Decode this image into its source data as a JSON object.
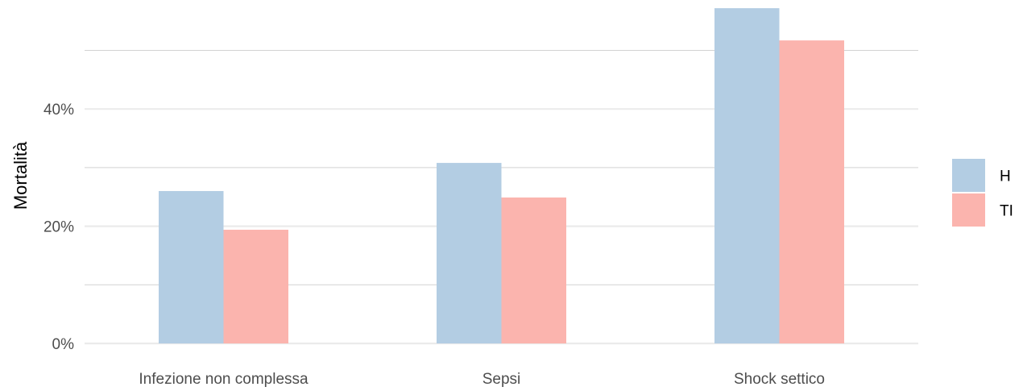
{
  "chart_data": {
    "type": "bar",
    "categories": [
      "Infezione non complessa",
      "Sepsi",
      "Shock settico"
    ],
    "series": [
      {
        "name": "H",
        "values": [
          26.0,
          30.8,
          57.2
        ],
        "color": "#b3cde3"
      },
      {
        "name": "TI",
        "values": [
          19.4,
          24.9,
          51.7
        ],
        "color": "#fbb4ae"
      }
    ],
    "ylabel": "Mortalità",
    "yticks": [
      0,
      20,
      40
    ],
    "ytick_labels": [
      "0%",
      "20%",
      "40%"
    ],
    "ylim": [
      0,
      57.2
    ],
    "minor_gridlines": [
      10,
      30,
      50
    ],
    "grid": true,
    "legend_position": "right"
  }
}
